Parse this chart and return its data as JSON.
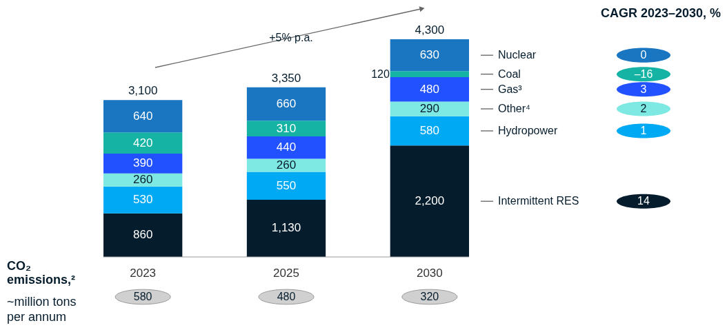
{
  "chart_data": {
    "type": "bar",
    "stacked": true,
    "categories": [
      "2023",
      "2025",
      "2030"
    ],
    "series": [
      {
        "name": "Intermittent RES",
        "color": "#051c2c",
        "values": [
          860,
          1130,
          2200
        ],
        "value_labels": [
          "860",
          "1,130",
          "2,200"
        ]
      },
      {
        "name": "Hydropower",
        "color": "#00a9f4",
        "values": [
          530,
          550,
          580
        ],
        "value_labels": [
          "530",
          "550",
          "580"
        ]
      },
      {
        "name": "Other⁴",
        "color": "#7ee9e2",
        "values": [
          260,
          260,
          290
        ],
        "value_labels": [
          "260",
          "260",
          "290"
        ]
      },
      {
        "name": "Gas³",
        "color": "#2251ff",
        "values": [
          390,
          440,
          480
        ],
        "value_labels": [
          "390",
          "440",
          "480"
        ]
      },
      {
        "name": "Coal",
        "color": "#14b3a4",
        "values": [
          420,
          310,
          120
        ],
        "value_labels": [
          "420",
          "310",
          "120"
        ]
      },
      {
        "name": "Nuclear",
        "color": "#1b76c2",
        "values": [
          640,
          660,
          630
        ],
        "value_labels": [
          "640",
          "660",
          "630"
        ]
      }
    ],
    "totals": [
      "3,100",
      "3,350",
      "4,300"
    ],
    "annotations": [
      "+5% p.a.",
      "CAGR 2023–2030, %",
      "14",
      "1",
      "2",
      "3",
      "–16",
      "0",
      "CO₂\nemissions,²",
      "~million tons\nper annum",
      "580",
      "480",
      "320"
    ]
  }
}
